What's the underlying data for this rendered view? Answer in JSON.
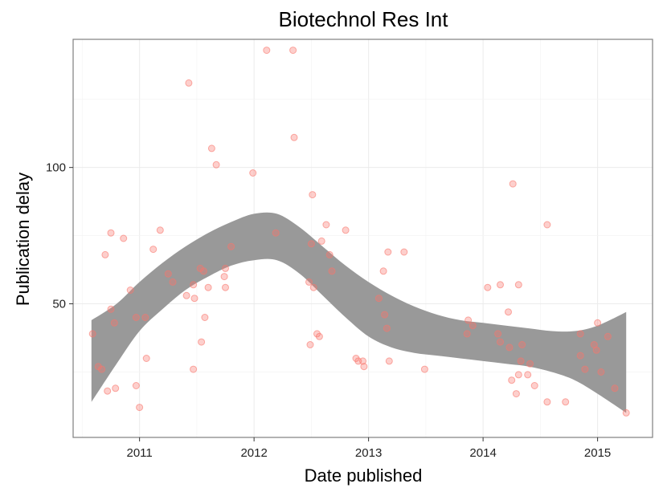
{
  "chart_data": {
    "type": "scatter",
    "title": "Biotechnol Res Int",
    "xlabel": "Date published",
    "ylabel": "Publication delay",
    "xlim": [
      2010.42,
      2015.48
    ],
    "ylim": [
      1,
      147
    ],
    "x_ticks": [
      2011,
      2012,
      2013,
      2014,
      2015
    ],
    "x_tick_labels": [
      "2011",
      "2012",
      "2013",
      "2014",
      "2015"
    ],
    "y_ticks": [
      50,
      100
    ],
    "y_tick_labels": [
      "50",
      "100"
    ],
    "grid": true,
    "point_color": "#f8766d",
    "band_color": "#999999",
    "smooth_band": {
      "x": [
        2010.58,
        2010.8,
        2011.0,
        2011.2,
        2011.4,
        2011.6,
        2011.8,
        2012.0,
        2012.2,
        2012.4,
        2012.6,
        2012.8,
        2013.0,
        2013.2,
        2013.4,
        2013.6,
        2013.8,
        2014.0,
        2014.2,
        2014.4,
        2014.6,
        2014.8,
        2015.0,
        2015.25
      ],
      "lower": [
        14,
        28,
        40,
        48,
        55,
        60,
        64,
        66,
        66,
        61,
        53,
        45,
        38,
        34,
        32,
        31,
        30,
        29,
        28,
        27,
        25,
        22,
        17,
        10
      ],
      "upper": [
        44,
        50,
        58,
        65,
        71,
        76,
        80,
        83,
        83,
        78,
        71,
        64,
        58,
        53,
        49,
        46,
        44,
        43,
        42,
        41,
        40,
        40,
        42,
        47
      ]
    },
    "points": [
      {
        "x": 2010.59,
        "y": 39
      },
      {
        "x": 2010.64,
        "y": 27
      },
      {
        "x": 2010.67,
        "y": 26
      },
      {
        "x": 2010.7,
        "y": 68
      },
      {
        "x": 2010.72,
        "y": 18
      },
      {
        "x": 2010.75,
        "y": 76
      },
      {
        "x": 2010.75,
        "y": 48
      },
      {
        "x": 2010.78,
        "y": 43
      },
      {
        "x": 2010.79,
        "y": 19
      },
      {
        "x": 2010.86,
        "y": 74
      },
      {
        "x": 2010.92,
        "y": 55
      },
      {
        "x": 2010.97,
        "y": 45
      },
      {
        "x": 2010.97,
        "y": 20
      },
      {
        "x": 2011.0,
        "y": 12
      },
      {
        "x": 2011.05,
        "y": 45
      },
      {
        "x": 2011.06,
        "y": 30
      },
      {
        "x": 2011.12,
        "y": 70
      },
      {
        "x": 2011.18,
        "y": 77
      },
      {
        "x": 2011.25,
        "y": 61
      },
      {
        "x": 2011.29,
        "y": 58
      },
      {
        "x": 2011.41,
        "y": 53
      },
      {
        "x": 2011.43,
        "y": 131
      },
      {
        "x": 2011.47,
        "y": 26
      },
      {
        "x": 2011.47,
        "y": 57
      },
      {
        "x": 2011.48,
        "y": 52
      },
      {
        "x": 2011.53,
        "y": 63
      },
      {
        "x": 2011.54,
        "y": 36
      },
      {
        "x": 2011.56,
        "y": 62
      },
      {
        "x": 2011.57,
        "y": 45
      },
      {
        "x": 2011.6,
        "y": 56
      },
      {
        "x": 2011.63,
        "y": 107
      },
      {
        "x": 2011.67,
        "y": 101
      },
      {
        "x": 2011.74,
        "y": 60
      },
      {
        "x": 2011.75,
        "y": 63
      },
      {
        "x": 2011.75,
        "y": 56
      },
      {
        "x": 2011.8,
        "y": 71
      },
      {
        "x": 2011.99,
        "y": 98
      },
      {
        "x": 2012.11,
        "y": 143
      },
      {
        "x": 2012.19,
        "y": 76
      },
      {
        "x": 2012.34,
        "y": 143
      },
      {
        "x": 2012.35,
        "y": 111
      },
      {
        "x": 2012.48,
        "y": 58
      },
      {
        "x": 2012.49,
        "y": 35
      },
      {
        "x": 2012.5,
        "y": 72
      },
      {
        "x": 2012.51,
        "y": 90
      },
      {
        "x": 2012.52,
        "y": 56
      },
      {
        "x": 2012.55,
        "y": 39
      },
      {
        "x": 2012.57,
        "y": 38
      },
      {
        "x": 2012.59,
        "y": 73
      },
      {
        "x": 2012.63,
        "y": 79
      },
      {
        "x": 2012.66,
        "y": 68
      },
      {
        "x": 2012.68,
        "y": 62
      },
      {
        "x": 2012.8,
        "y": 77
      },
      {
        "x": 2012.89,
        "y": 30
      },
      {
        "x": 2012.91,
        "y": 29
      },
      {
        "x": 2012.95,
        "y": 29
      },
      {
        "x": 2012.96,
        "y": 27
      },
      {
        "x": 2013.09,
        "y": 52
      },
      {
        "x": 2013.13,
        "y": 62
      },
      {
        "x": 2013.14,
        "y": 46
      },
      {
        "x": 2013.16,
        "y": 41
      },
      {
        "x": 2013.17,
        "y": 69
      },
      {
        "x": 2013.18,
        "y": 29
      },
      {
        "x": 2013.31,
        "y": 69
      },
      {
        "x": 2013.49,
        "y": 26
      },
      {
        "x": 2013.86,
        "y": 39
      },
      {
        "x": 2013.87,
        "y": 44
      },
      {
        "x": 2013.91,
        "y": 42
      },
      {
        "x": 2014.04,
        "y": 56
      },
      {
        "x": 2014.13,
        "y": 39
      },
      {
        "x": 2014.15,
        "y": 36
      },
      {
        "x": 2014.15,
        "y": 57
      },
      {
        "x": 2014.22,
        "y": 47
      },
      {
        "x": 2014.23,
        "y": 34
      },
      {
        "x": 2014.25,
        "y": 22
      },
      {
        "x": 2014.26,
        "y": 94
      },
      {
        "x": 2014.29,
        "y": 17
      },
      {
        "x": 2014.31,
        "y": 57
      },
      {
        "x": 2014.31,
        "y": 24
      },
      {
        "x": 2014.33,
        "y": 29
      },
      {
        "x": 2014.34,
        "y": 35
      },
      {
        "x": 2014.39,
        "y": 24
      },
      {
        "x": 2014.41,
        "y": 28
      },
      {
        "x": 2014.45,
        "y": 20
      },
      {
        "x": 2014.56,
        "y": 79
      },
      {
        "x": 2014.56,
        "y": 14
      },
      {
        "x": 2014.72,
        "y": 14
      },
      {
        "x": 2014.85,
        "y": 39
      },
      {
        "x": 2014.85,
        "y": 31
      },
      {
        "x": 2014.89,
        "y": 26
      },
      {
        "x": 2014.97,
        "y": 35
      },
      {
        "x": 2014.99,
        "y": 33
      },
      {
        "x": 2015.0,
        "y": 43
      },
      {
        "x": 2015.03,
        "y": 25
      },
      {
        "x": 2015.09,
        "y": 38
      },
      {
        "x": 2015.15,
        "y": 19
      },
      {
        "x": 2015.25,
        "y": 10
      }
    ]
  }
}
